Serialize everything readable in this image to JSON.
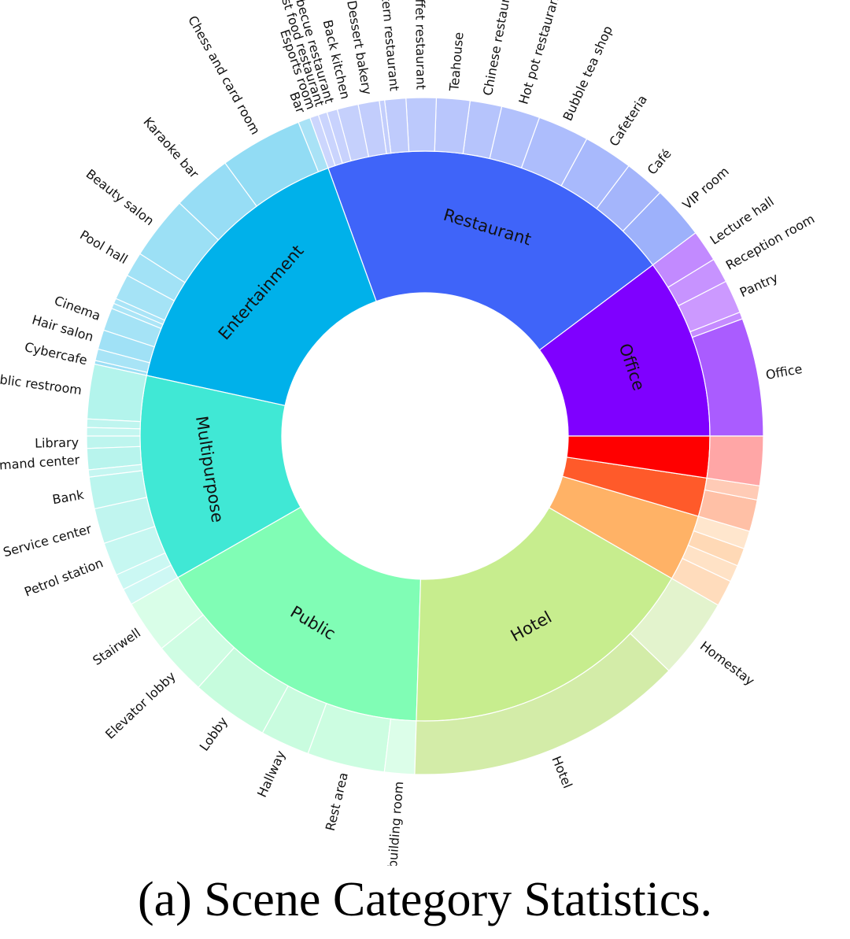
{
  "caption": "(a) Scene Category Statistics.",
  "chart_data": {
    "type": "sunburst",
    "title": "",
    "inner": [
      {
        "name": "Office",
        "label": "Office",
        "value": 10.16,
        "color": "#7f00ff",
        "children": [
          {
            "name": "Office",
            "label": "Office",
            "value": 5.58,
            "color": "#aa5cff"
          },
          {
            "name": "Small office segment 1",
            "label": "",
            "value": 0.33,
            "color": "#c58bff"
          },
          {
            "name": "Pantry",
            "label": "Pantry",
            "value": 1.58,
            "color": "#cc99ff"
          },
          {
            "name": "Reception room",
            "label": "Reception room",
            "value": 1.17,
            "color": "#c793ff"
          },
          {
            "name": "Lecture hall",
            "label": "Lecture hall",
            "value": 1.5,
            "color": "#c28aff"
          }
        ]
      },
      {
        "name": "Restaurant",
        "label": "Restaurant",
        "value": 20.08,
        "color": "#3f64f9",
        "children": [
          {
            "name": "VIP room",
            "label": "VIP room",
            "value": 2.5,
            "color": "#9db1fb"
          },
          {
            "name": "Café",
            "label": "Café",
            "value": 1.92,
            "color": "#a4b5fb"
          },
          {
            "name": "Cafeteria",
            "label": "Cafeteria",
            "value": 2.33,
            "color": "#a8b9fc"
          },
          {
            "name": "Bubble tea shop",
            "label": "Bubble tea shop",
            "value": 2.42,
            "color": "#adbdfc"
          },
          {
            "name": "Hot pot restaurant",
            "label": "Hot pot restaurant",
            "value": 1.83,
            "color": "#b2c1fc"
          },
          {
            "name": "Chinese restaurant",
            "label": "Chinese restaurant",
            "value": 1.5,
            "color": "#b6c4fc"
          },
          {
            "name": "Teahouse",
            "label": "Teahouse",
            "value": 1.58,
            "color": "#b9c6fc"
          },
          {
            "name": "Buffet restaurant",
            "label": "Buffet restaurant",
            "value": 1.42,
            "color": "#bcc9fc"
          },
          {
            "name": "Western restaurant",
            "label": "Western restaurant",
            "value": 1.0,
            "color": "#bfcbfc"
          },
          {
            "name": "Restaurant segment 10",
            "label": "",
            "value": 0.25,
            "color": "#c3cefc"
          },
          {
            "name": "Dessert bakery",
            "label": "Dessert bakery",
            "value": 1.0,
            "color": "#c2cdfc"
          },
          {
            "name": "Back kitchen",
            "label": "Back kitchen",
            "value": 1.0,
            "color": "#c5d0fc"
          },
          {
            "name": "Barbecue restaurant",
            "label": "Barbecue restaurant",
            "value": 0.5,
            "color": "#c8d2fd"
          },
          {
            "name": "Fast food restaurant",
            "label": "Fast food restaurant",
            "value": 0.42,
            "color": "#cad4fd"
          },
          {
            "name": "Esports room",
            "label": "Esports room",
            "value": 0.41,
            "color": "#ccd6fd"
          }
        ]
      },
      {
        "name": "Entertainment",
        "label": "Entertainment",
        "value": 15.92,
        "color": "#00b1ea",
        "children": [
          {
            "name": "Bar",
            "label": "Bar",
            "value": 0.58,
            "color": "#a9e2f6"
          },
          {
            "name": "Chess and card room",
            "label": "Chess and card room",
            "value": 3.92,
            "color": "#92dcf4"
          },
          {
            "name": "Karaoke bar",
            "label": "Karaoke bar",
            "value": 2.83,
            "color": "#97ddf5"
          },
          {
            "name": "Beauty salon",
            "label": "Beauty salon",
            "value": 3.0,
            "color": "#9ce0f5"
          },
          {
            "name": "Pool hall",
            "label": "Pool hall",
            "value": 1.17,
            "color": "#a2e2f6"
          },
          {
            "name": "Entertainment segment 6",
            "label": "",
            "value": 1.2,
            "color": "#a5e3f6"
          },
          {
            "name": "Entertainment segment 7",
            "label": "",
            "value": 0.25,
            "color": "#a9e4f7"
          },
          {
            "name": "Entertainment segment 8",
            "label": "",
            "value": 0.25,
            "color": "#abe5f7"
          },
          {
            "name": "Cinema",
            "label": "Cinema",
            "value": 1.08,
            "color": "#a5e3f6"
          },
          {
            "name": "Hair salon",
            "label": "Hair salon",
            "value": 0.92,
            "color": "#a0e1f6"
          },
          {
            "name": "Entertainment segment 11",
            "label": "",
            "value": 0.55,
            "color": "#a8e4f6"
          },
          {
            "name": "Cybercafe",
            "label": "Cybercafe",
            "value": 0.17,
            "color": "#9cdff5"
          }
        ]
      },
      {
        "name": "Multipurpose",
        "label": "Multipurpose",
        "value": 11.58,
        "color": "#40e8d5",
        "children": [
          {
            "name": "Public restroom",
            "label": "Public restroom",
            "value": 2.58,
            "color": "#b3f4ec"
          },
          {
            "name": "Multipurpose segment 2",
            "label": "",
            "value": 0.4,
            "color": "#bff5ef"
          },
          {
            "name": "Multipurpose segment 3",
            "label": "",
            "value": 0.4,
            "color": "#c3f6f0"
          },
          {
            "name": "Library",
            "label": "Library",
            "value": 0.58,
            "color": "#bdf5ee"
          },
          {
            "name": "Command center",
            "label": "Command center",
            "value": 1.0,
            "color": "#b8f4ed"
          },
          {
            "name": "Multipurpose segment 6",
            "label": "",
            "value": 0.34,
            "color": "#c5f6f1"
          },
          {
            "name": "Bank",
            "label": "Bank",
            "value": 1.5,
            "color": "#bbf5ee"
          },
          {
            "name": "Service center",
            "label": "Service center",
            "value": 1.67,
            "color": "#c0f5ef"
          },
          {
            "name": "Petrol station",
            "label": "Petrol station",
            "value": 1.58,
            "color": "#c6f7f1"
          },
          {
            "name": "Multipurpose segment 10",
            "label": "",
            "value": 0.75,
            "color": "#cbf8f3"
          },
          {
            "name": "Multipurpose segment 11",
            "label": "",
            "value": 0.78,
            "color": "#cef8f4"
          }
        ]
      },
      {
        "name": "Public",
        "label": "Public",
        "value": 16.09,
        "color": "#80fdb5",
        "children": [
          {
            "name": "Stairwell",
            "label": "Stairwell",
            "value": 2.5,
            "color": "#d9fee8"
          },
          {
            "name": "Elevator lobby",
            "label": "Elevator lobby",
            "value": 2.5,
            "color": "#cffde3"
          },
          {
            "name": "Lobby",
            "label": "Lobby",
            "value": 3.67,
            "color": "#c6fcdd"
          },
          {
            "name": "Hallway",
            "label": "Hallway",
            "value": 2.33,
            "color": "#c9fcdf"
          },
          {
            "name": "Rest area",
            "label": "Rest area",
            "value": 3.67,
            "color": "#ccfde1"
          },
          {
            "name": "Party building room",
            "label": "Party building room",
            "value": 1.42,
            "color": "#dcfee9"
          }
        ]
      },
      {
        "name": "Hotel",
        "label": "Hotel",
        "value": 17.0,
        "color": "#c7ed8e",
        "children": [
          {
            "name": "Hotel",
            "label": "Hotel",
            "value": 13.17,
            "color": "#d3eca8"
          },
          {
            "name": "Homestay",
            "label": "Homestay",
            "value": 3.83,
            "color": "#e3f3cd"
          }
        ]
      },
      {
        "name": "Orange group",
        "label": "",
        "value": 3.75,
        "color": "#ffb266",
        "children": [
          {
            "name": "Orange segment 1",
            "label": "",
            "value": 1.25,
            "color": "#ffdcbc"
          },
          {
            "name": "Orange segment 2",
            "label": "",
            "value": 0.8,
            "color": "#ffe2c6"
          },
          {
            "name": "Orange segment 3",
            "label": "",
            "value": 0.85,
            "color": "#ffd9b6"
          },
          {
            "name": "Orange segment 4",
            "label": "",
            "value": 0.85,
            "color": "#ffe6cd"
          }
        ]
      },
      {
        "name": "Orange-red group",
        "label": "",
        "value": 2.17,
        "color": "#ff5a2a",
        "children": [
          {
            "name": "Orange-red segment 1",
            "label": "",
            "value": 1.5,
            "color": "#ffc0a6"
          },
          {
            "name": "Orange-red segment 2",
            "label": "",
            "value": 0.67,
            "color": "#ffcbb6"
          }
        ]
      },
      {
        "name": "Red group",
        "label": "",
        "value": 2.33,
        "color": "#ff0000",
        "children": [
          {
            "name": "Red segment 1",
            "label": "",
            "value": 2.33,
            "color": "#ffa6a6"
          }
        ]
      }
    ]
  }
}
